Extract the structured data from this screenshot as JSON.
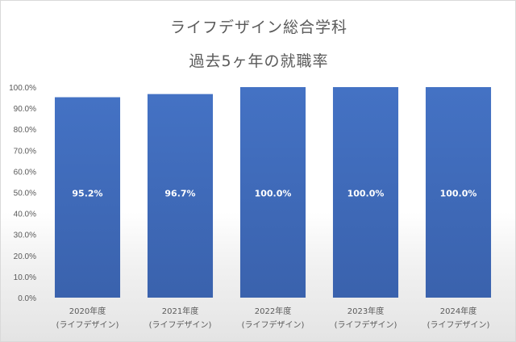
{
  "chart_data": {
    "type": "bar",
    "title": "ライフデザイン総合学科",
    "subtitle": "過去5ヶ年の就職率",
    "categories": [
      [
        "2020年度",
        "(ライフデザイン)"
      ],
      [
        "2021年度",
        "(ライフデザイン)"
      ],
      [
        "2022年度",
        "(ライフデザイン)"
      ],
      [
        "2023年度",
        "(ライフデザイン)"
      ],
      [
        "2024年度",
        "(ライフデザイン)"
      ]
    ],
    "values": [
      95.2,
      96.7,
      100.0,
      100.0,
      100.0
    ],
    "data_labels": [
      "95.2%",
      "96.7%",
      "100.0%",
      "100.0%",
      "100.0%"
    ],
    "yticks": [
      "0.0%",
      "10.0%",
      "20.0%",
      "30.0%",
      "40.0%",
      "50.0%",
      "60.0%",
      "70.0%",
      "80.0%",
      "90.0%",
      "100.0%"
    ],
    "ylim": [
      0,
      100
    ],
    "xlabel": "",
    "ylabel": "",
    "grid": false,
    "bar_color": "#4472c4",
    "bar_color_dark": "#3a62ad"
  }
}
